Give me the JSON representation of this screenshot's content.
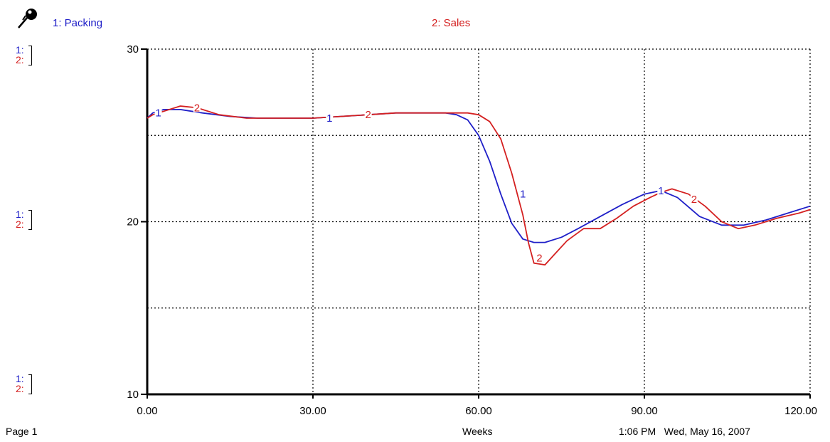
{
  "legend": {
    "series1_label": "1: Packing",
    "series2_label": "2: Sales",
    "pin_icon": "pushpin-icon"
  },
  "scale_marks": {
    "s1": "1:",
    "s2": "2:"
  },
  "footer": {
    "page": "Page 1",
    "timestamp": "1:06 PM   Wed, May 16, 2007"
  },
  "colors": {
    "packing": "#1f1fc8",
    "sales": "#d42020",
    "grid": "#000000",
    "axis": "#000000"
  },
  "chart_data": {
    "type": "line",
    "title": "",
    "xlabel": "Weeks",
    "ylabel": "",
    "xlim": [
      0,
      120
    ],
    "ylim": [
      10,
      30
    ],
    "x_ticks": [
      0,
      30,
      60,
      90,
      120
    ],
    "x_tick_labels": [
      "0.00",
      "30.00",
      "60.00",
      "90.00",
      "120.00"
    ],
    "y_ticks": [
      10,
      20,
      30
    ],
    "y_tick_labels": [
      "10",
      "20",
      "30"
    ],
    "grid": true,
    "grid_style": "dotted",
    "series": [
      {
        "name": "1: Packing",
        "marker": "1",
        "color": "#1f1fc8",
        "x": [
          0,
          1,
          3,
          6,
          10,
          15,
          20,
          25,
          30,
          35,
          40,
          45,
          50,
          54,
          56,
          58,
          60,
          62,
          64,
          66,
          68,
          70,
          72,
          75,
          78,
          82,
          86,
          90,
          93,
          96,
          100,
          104,
          108,
          112,
          116,
          120
        ],
        "y": [
          26.0,
          26.3,
          26.5,
          26.5,
          26.3,
          26.1,
          26.0,
          26.0,
          26.0,
          26.1,
          26.2,
          26.3,
          26.3,
          26.3,
          26.2,
          25.9,
          25.0,
          23.5,
          21.6,
          19.9,
          19.0,
          18.8,
          18.8,
          19.1,
          19.6,
          20.3,
          21.0,
          21.6,
          21.8,
          21.4,
          20.3,
          19.8,
          19.8,
          20.1,
          20.5,
          20.9
        ]
      },
      {
        "name": "2: Sales",
        "marker": "2",
        "color": "#d42020",
        "x": [
          0,
          1,
          3,
          6,
          9,
          13,
          18,
          25,
          30,
          35,
          40,
          45,
          50,
          55,
          58,
          60,
          62,
          64,
          66,
          68,
          69,
          70,
          72,
          74,
          76,
          79,
          82,
          85,
          88,
          91,
          93,
          95,
          98,
          101,
          104,
          107,
          110,
          114,
          118,
          120
        ],
        "y": [
          26.0,
          26.2,
          26.4,
          26.7,
          26.6,
          26.2,
          26.0,
          26.0,
          26.0,
          26.1,
          26.2,
          26.3,
          26.3,
          26.3,
          26.3,
          26.2,
          25.8,
          24.8,
          22.8,
          20.4,
          18.8,
          17.6,
          17.5,
          18.2,
          18.9,
          19.6,
          19.6,
          20.2,
          20.9,
          21.4,
          21.7,
          21.9,
          21.6,
          20.9,
          20.0,
          19.6,
          19.8,
          20.2,
          20.5,
          20.7
        ]
      }
    ],
    "marker_positions": {
      "packing": [
        [
          2,
          26.3
        ],
        [
          33,
          26.0
        ],
        [
          68,
          21.6
        ],
        [
          93,
          21.8
        ]
      ],
      "sales": [
        [
          9,
          26.6
        ],
        [
          40,
          26.2
        ],
        [
          71,
          17.9
        ],
        [
          99,
          21.3
        ]
      ]
    }
  }
}
